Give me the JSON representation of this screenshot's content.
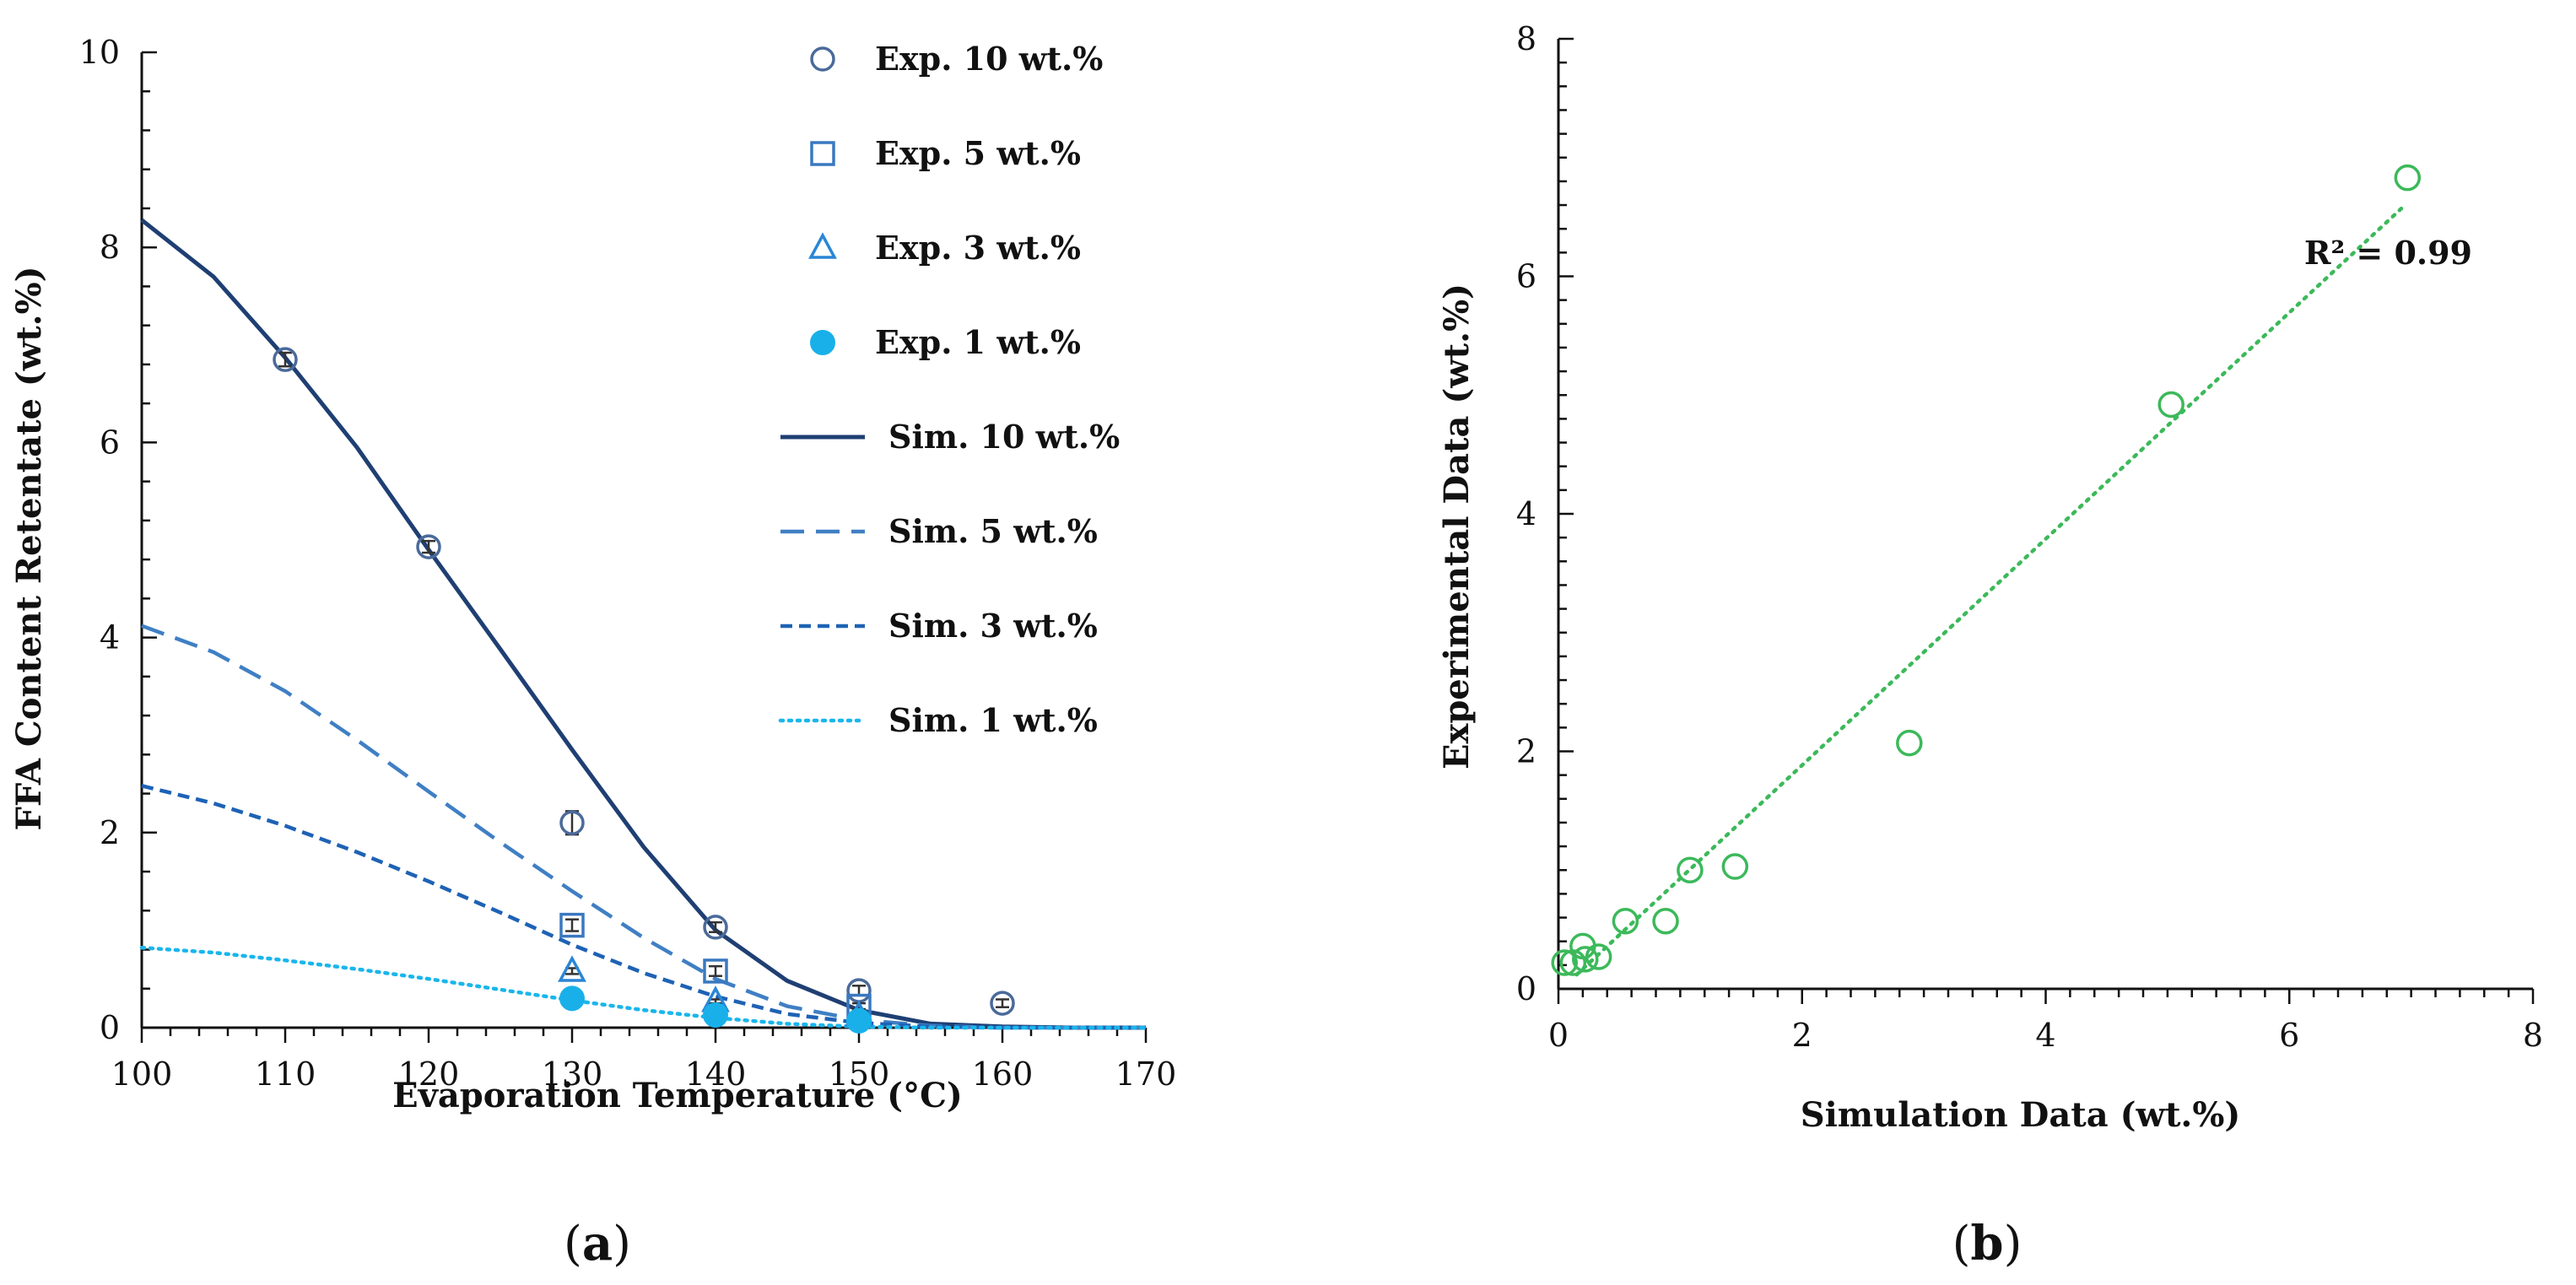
{
  "chart_data": [
    {
      "panel": "a",
      "panel_label": "a",
      "type": "line",
      "xlabel": "Evaporation Temperature (°C)",
      "ylabel": "FFA Content Retentate (wt.%)",
      "xlim": [
        100,
        170
      ],
      "ylim": [
        0,
        10
      ],
      "xticks": [
        100,
        110,
        120,
        130,
        140,
        150,
        160,
        170
      ],
      "yticks": [
        0,
        2,
        4,
        6,
        8,
        10
      ],
      "legend_position": "top-right",
      "colors": {
        "exp10": "#4a6a9a",
        "exp5": "#3a78c0",
        "exp3": "#2a86d6",
        "exp1": "#19b0ea",
        "sim10": "#1f3f73",
        "sim5": "#3f7fc4",
        "sim3": "#1e62b5",
        "sim1": "#19b6ec"
      },
      "experimental_series": [
        {
          "key": "exp10",
          "name": "Exp. 10 wt.%",
          "marker": "circle-open",
          "color": "#4a6a9a",
          "points": [
            [
              110,
              6.85,
              0.07
            ],
            [
              120,
              4.93,
              0.06
            ],
            [
              130,
              2.1,
              0.12
            ],
            [
              140,
              1.03,
              0.05
            ],
            [
              150,
              0.38,
              0.05
            ],
            [
              160,
              0.25,
              0.04
            ]
          ]
        },
        {
          "key": "exp5",
          "name": "Exp. 5 wt.%",
          "marker": "square-open",
          "color": "#3a78c0",
          "points": [
            [
              130,
              1.05,
              0.06
            ],
            [
              140,
              0.58,
              0.05
            ],
            [
              150,
              0.22,
              0.03
            ]
          ]
        },
        {
          "key": "exp3",
          "name": "Exp. 3 wt.%",
          "marker": "triangle-open",
          "color": "#2a86d6",
          "points": [
            [
              130,
              0.58,
              0.03
            ],
            [
              140,
              0.27,
              0.02
            ],
            [
              150,
              0.12,
              0.02
            ]
          ]
        },
        {
          "key": "exp1",
          "name": "Exp. 1 wt.%",
          "marker": "circle-filled",
          "color": "#19b0ea",
          "points": [
            [
              130,
              0.3,
              0.02
            ],
            [
              140,
              0.13,
              0.02
            ],
            [
              150,
              0.07,
              0.01
            ]
          ]
        }
      ],
      "simulation_series": [
        {
          "key": "sim10",
          "name": "Sim. 10 wt.%",
          "dash": "solid",
          "color": "#1f3f73",
          "x": [
            100,
            105,
            110,
            115,
            120,
            125,
            130,
            135,
            140,
            145,
            150,
            155,
            160,
            165,
            170
          ],
          "y": [
            8.28,
            7.7,
            6.87,
            5.95,
            4.9,
            3.88,
            2.85,
            1.85,
            1.0,
            0.48,
            0.18,
            0.04,
            0.01,
            0.0,
            0.0
          ]
        },
        {
          "key": "sim5",
          "name": "Sim. 5 wt.%",
          "dash": "long",
          "color": "#3f7fc4",
          "x": [
            100,
            105,
            110,
            115,
            120,
            125,
            130,
            135,
            140,
            145,
            150,
            155,
            160,
            165,
            170
          ],
          "y": [
            4.12,
            3.85,
            3.45,
            2.95,
            2.42,
            1.9,
            1.4,
            0.92,
            0.5,
            0.22,
            0.08,
            0.02,
            0.0,
            0.0,
            0.0
          ]
        },
        {
          "key": "sim3",
          "name": "Sim. 3 wt.%",
          "dash": "short",
          "color": "#1e62b5",
          "x": [
            100,
            105,
            110,
            115,
            120,
            125,
            130,
            135,
            140,
            145,
            150,
            155,
            160,
            165,
            170
          ],
          "y": [
            2.48,
            2.3,
            2.07,
            1.8,
            1.5,
            1.18,
            0.85,
            0.56,
            0.32,
            0.14,
            0.05,
            0.01,
            0.0,
            0.0,
            0.0
          ]
        },
        {
          "key": "sim1",
          "name": "Sim. 1 wt.%",
          "dash": "dotted",
          "color": "#19b6ec",
          "x": [
            100,
            105,
            110,
            115,
            120,
            125,
            130,
            135,
            140,
            145,
            150,
            155,
            160,
            165,
            170
          ],
          "y": [
            0.82,
            0.77,
            0.69,
            0.6,
            0.5,
            0.39,
            0.28,
            0.18,
            0.1,
            0.04,
            0.01,
            0.0,
            0.0,
            0.0,
            0.0
          ]
        }
      ],
      "legend": [
        {
          "key": "exp10",
          "label": "Exp. 10 wt.%"
        },
        {
          "key": "exp5",
          "label": "Exp. 5 wt.%"
        },
        {
          "key": "exp3",
          "label": "Exp. 3 wt.%"
        },
        {
          "key": "exp1",
          "label": "Exp. 1 wt.%"
        },
        {
          "key": "sim10",
          "label": "Sim. 10 wt.%"
        },
        {
          "key": "sim5",
          "label": "Sim. 5 wt.%"
        },
        {
          "key": "sim3",
          "label": "Sim. 3 wt.%"
        },
        {
          "key": "sim1",
          "label": "Sim. 1 wt.%"
        }
      ]
    },
    {
      "panel": "b",
      "panel_label": "b",
      "type": "scatter",
      "xlabel": "Simulation  Data (wt.%)",
      "ylabel": "Experimental Data (wt.%)",
      "xlim": [
        0,
        8
      ],
      "ylim": [
        0,
        8
      ],
      "xticks": [
        0,
        2,
        4,
        6,
        8
      ],
      "yticks": [
        0,
        2,
        4,
        6,
        8
      ],
      "color": "#3cb95a",
      "points": [
        [
          0.05,
          0.22
        ],
        [
          0.12,
          0.22
        ],
        [
          0.2,
          0.36
        ],
        [
          0.22,
          0.25
        ],
        [
          0.33,
          0.27
        ],
        [
          0.55,
          0.57
        ],
        [
          0.88,
          0.57
        ],
        [
          1.08,
          1.0
        ],
        [
          1.45,
          1.03
        ],
        [
          2.88,
          2.07
        ],
        [
          5.03,
          4.92
        ],
        [
          6.97,
          6.83
        ]
      ],
      "trendline": {
        "style": "dotted",
        "x": [
          0.15,
          6.95
        ],
        "y": [
          0.12,
          6.6
        ]
      },
      "annotation": "R² = 0.99"
    }
  ]
}
